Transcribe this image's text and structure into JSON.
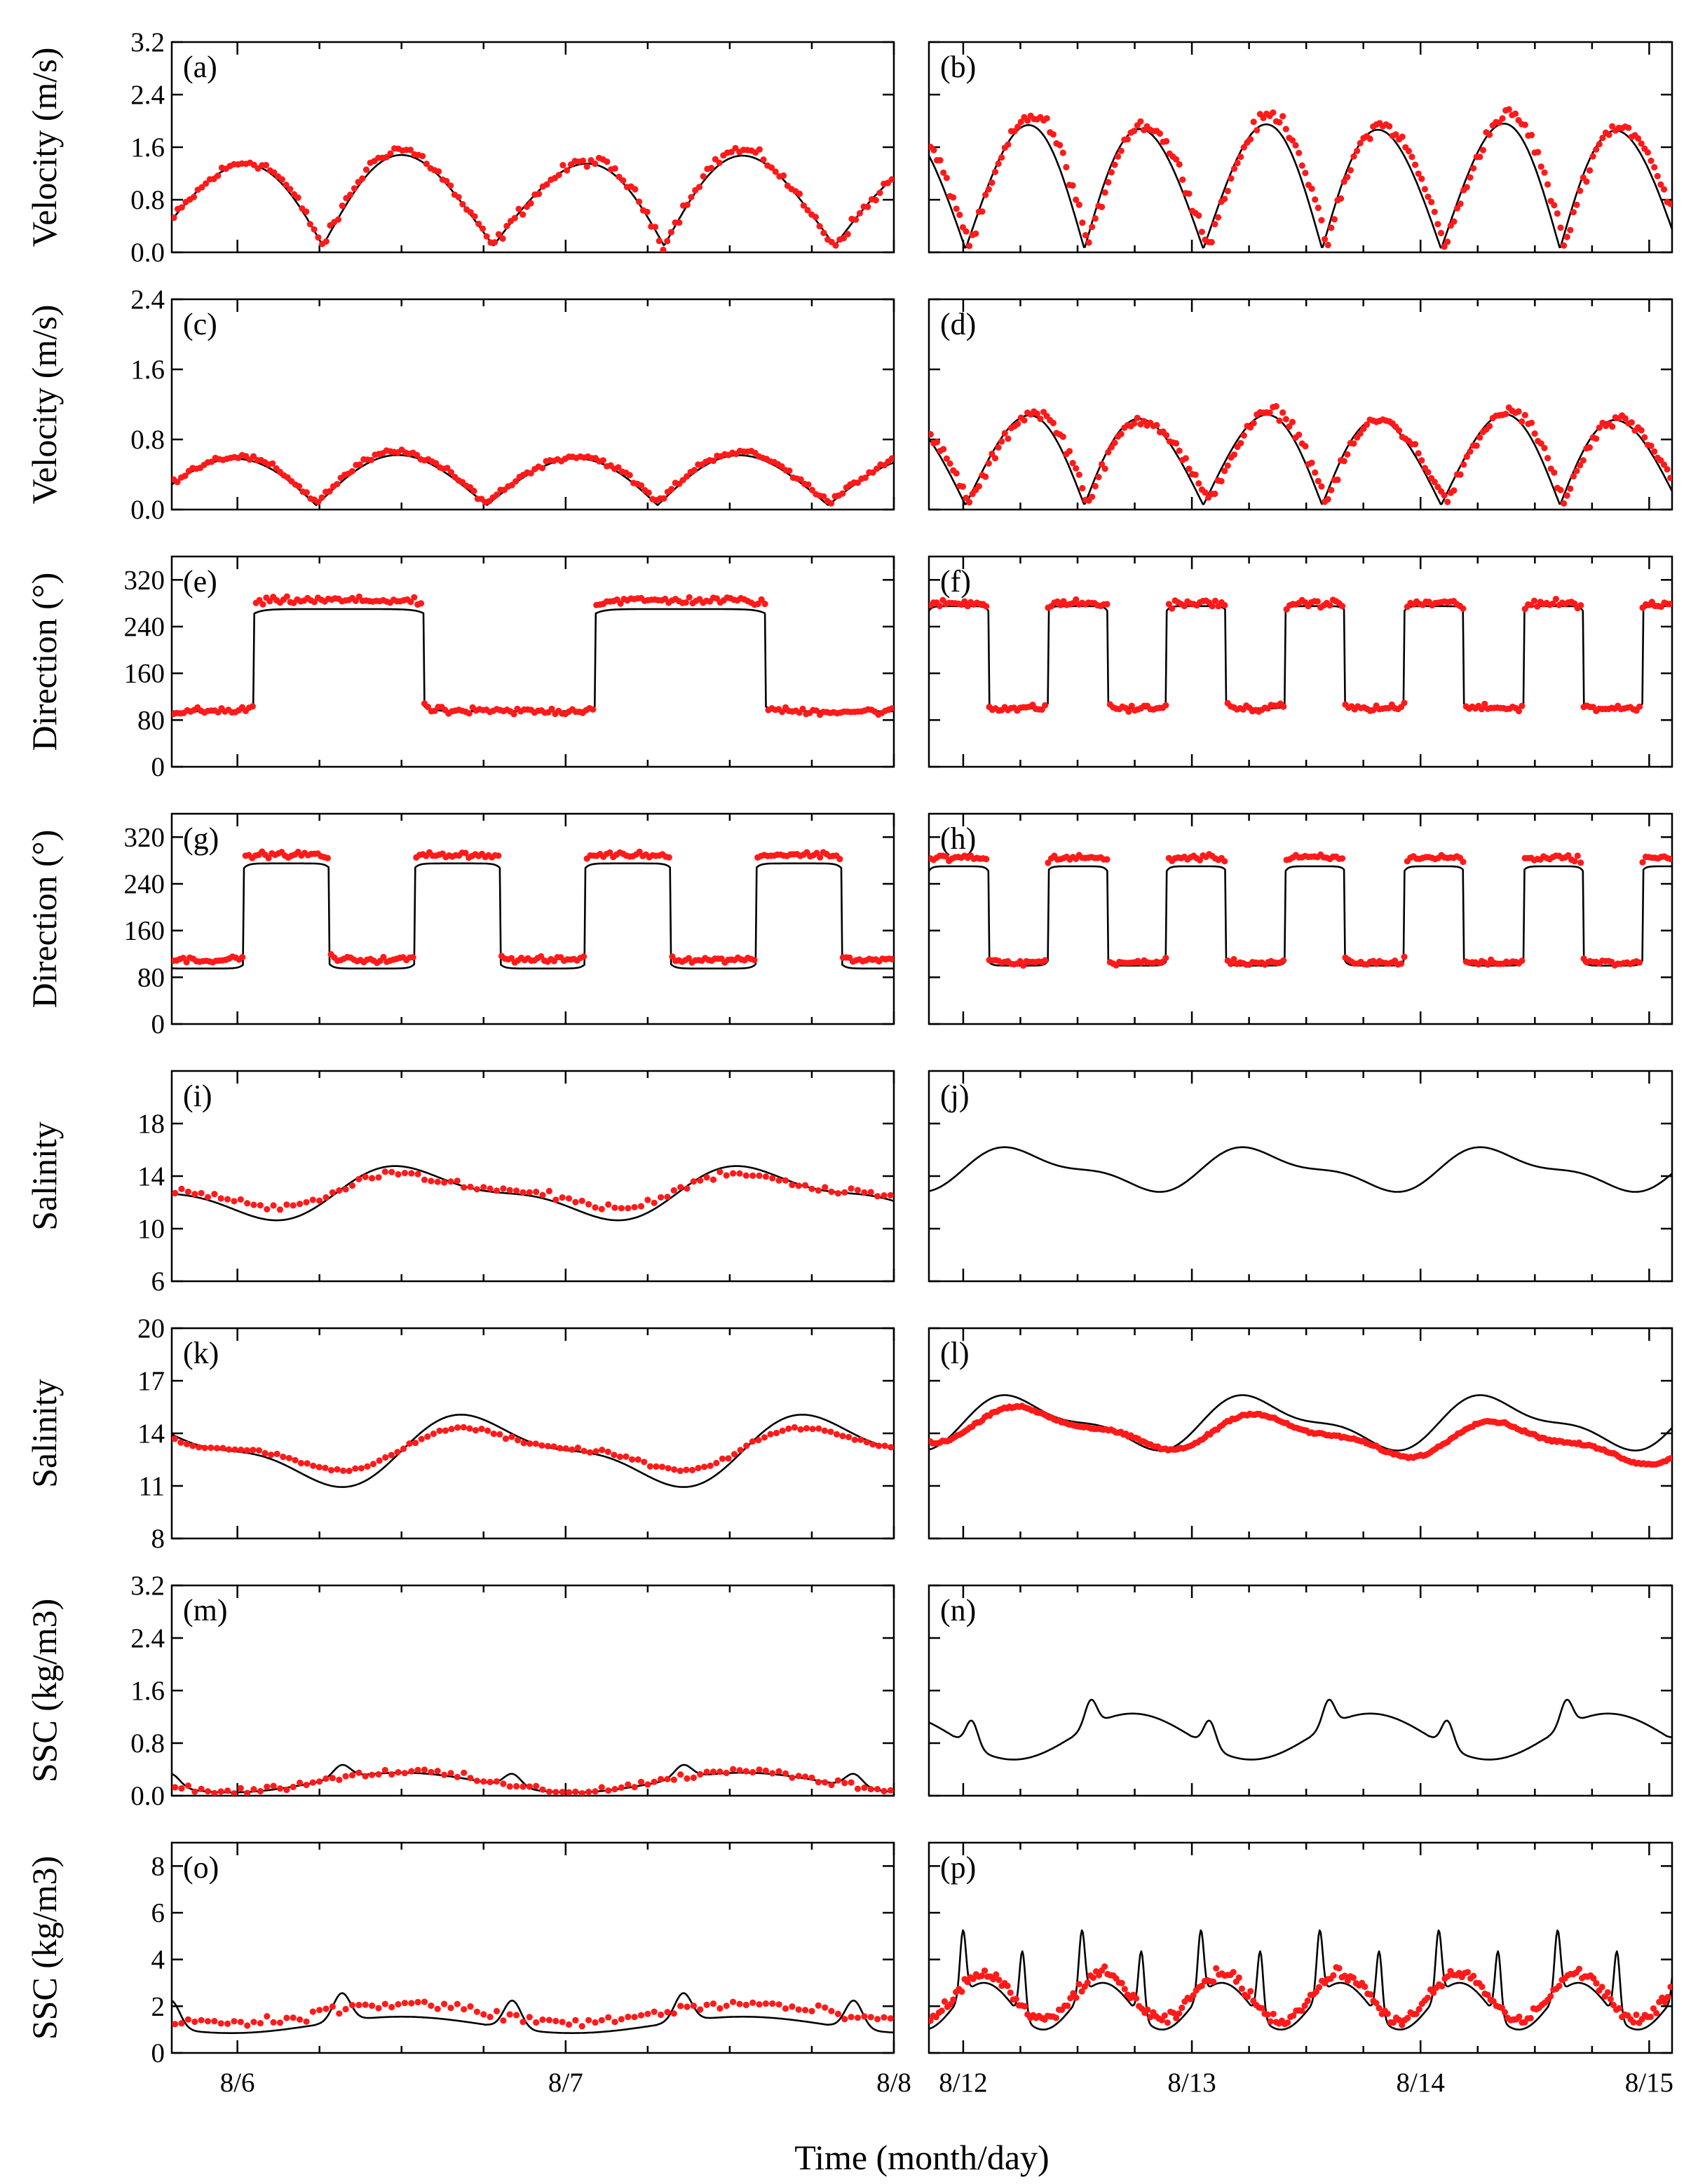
{
  "figure": {
    "xlabel": "Time (month/day)",
    "colors": {
      "model": "#000000",
      "observed": "#ff1a1a"
    },
    "left_x_ticks": [
      "8/6",
      "8/7",
      "8/8"
    ],
    "right_x_ticks": [
      "8/12",
      "8/13",
      "8/14",
      "8/15"
    ],
    "row_ylabels": [
      "Velocity (m/s)",
      "Velocity (m/s)",
      "Direction (°)",
      "Direction (°)",
      "Salinity",
      "Salinity",
      "SSC (kg/m3)",
      "SSC (kg/m3)"
    ]
  },
  "chart_data": [
    {
      "id": "a",
      "tag": "(a)",
      "type": "line",
      "ylim": [
        0,
        3.2
      ],
      "yticks": [
        "0.0",
        "0.8",
        "1.6",
        "2.4",
        "3.2"
      ],
      "xlim": [
        5.8,
        8.0
      ],
      "series": [
        {
          "name": "model",
          "kind": "abs_cos",
          "base": 0.1,
          "amp": 1.3,
          "period": 0.52,
          "phase": 0.02,
          "mod": 0.15
        },
        {
          "name": "observed",
          "kind": "abs_cos_dots",
          "base": 0.1,
          "amp": 1.35,
          "period": 0.52,
          "phase": 0.02,
          "mod": 0.2,
          "n": 180,
          "noise": 0.12
        }
      ]
    },
    {
      "id": "b",
      "tag": "(b)",
      "type": "line",
      "ylim": [
        0,
        3.2
      ],
      "yticks": [],
      "xlim": [
        11.85,
        15.1
      ],
      "series": [
        {
          "name": "model",
          "kind": "abs_cos",
          "base": 0.05,
          "amp": 1.85,
          "period": 0.52,
          "phase": 0.05,
          "mod": 0.1
        },
        {
          "name": "observed",
          "kind": "abs_cos_dots",
          "base": 0.1,
          "amp": 1.9,
          "period": 0.52,
          "phase": 0.07,
          "mod": 0.12,
          "n": 230,
          "noise": 0.15
        }
      ]
    },
    {
      "id": "c",
      "tag": "(c)",
      "type": "line",
      "ylim": [
        0,
        2.4
      ],
      "yticks": [
        "0.0",
        "0.8",
        "1.6",
        "2.4"
      ],
      "xlim": [
        5.8,
        8.0
      ],
      "series": [
        {
          "name": "model",
          "kind": "abs_cos",
          "base": 0.05,
          "amp": 0.55,
          "period": 0.52,
          "phase": 0.0,
          "mod": 0.08
        },
        {
          "name": "observed",
          "kind": "abs_cos_dots",
          "base": 0.08,
          "amp": 0.55,
          "period": 0.52,
          "phase": 0.0,
          "mod": 0.1,
          "n": 190,
          "noise": 0.05
        }
      ]
    },
    {
      "id": "d",
      "tag": "(d)",
      "type": "line",
      "ylim": [
        0,
        2.4
      ],
      "yticks": [],
      "xlim": [
        11.85,
        15.1
      ],
      "series": [
        {
          "name": "model",
          "kind": "abs_cos",
          "base": 0.05,
          "amp": 1.0,
          "period": 0.52,
          "phase": 0.05,
          "mod": 0.12
        },
        {
          "name": "observed",
          "kind": "abs_cos_dots",
          "base": 0.08,
          "amp": 0.98,
          "period": 0.52,
          "phase": 0.07,
          "mod": 0.15,
          "n": 230,
          "noise": 0.1
        }
      ]
    },
    {
      "id": "e",
      "tag": "(e)",
      "type": "line",
      "ylim": [
        0,
        360
      ],
      "yticks": [
        "0",
        "80",
        "160",
        "240",
        "320"
      ],
      "xlim": [
        5.8,
        8.0
      ],
      "series": [
        {
          "name": "model",
          "kind": "square",
          "lo": 95,
          "hi": 270,
          "period": 1.04,
          "phase": 6.05,
          "duty": 0.5
        },
        {
          "name": "observed",
          "kind": "square_dots",
          "lo": 95,
          "hi": 285,
          "period": 1.04,
          "phase": 6.05,
          "duty": 0.5,
          "n": 210,
          "noise": 9
        }
      ]
    },
    {
      "id": "f",
      "tag": "(f)",
      "type": "line",
      "ylim": [
        0,
        360
      ],
      "yticks": [],
      "xlim": [
        11.85,
        15.1
      ],
      "series": [
        {
          "name": "model",
          "kind": "square",
          "lo": 100,
          "hi": 275,
          "period": 0.52,
          "phase": 11.85,
          "duty": 0.5
        },
        {
          "name": "observed",
          "kind": "square_dots",
          "lo": 100,
          "hi": 280,
          "period": 0.52,
          "phase": 11.85,
          "duty": 0.5,
          "n": 240,
          "noise": 9
        }
      ]
    },
    {
      "id": "g",
      "tag": "(g)",
      "type": "line",
      "ylim": [
        0,
        360
      ],
      "yticks": [
        "0",
        "80",
        "160",
        "240",
        "320"
      ],
      "xlim": [
        5.8,
        8.0
      ],
      "series": [
        {
          "name": "model",
          "kind": "square",
          "lo": 95,
          "hi": 275,
          "period": 0.52,
          "phase": 6.02,
          "duty": 0.5
        },
        {
          "name": "observed",
          "kind": "square_dots",
          "lo": 110,
          "hi": 290,
          "period": 0.52,
          "phase": 6.02,
          "duty": 0.5,
          "n": 220,
          "noise": 7
        }
      ]
    },
    {
      "id": "h",
      "tag": "(h)",
      "type": "line",
      "ylim": [
        0,
        360
      ],
      "yticks": [],
      "xlim": [
        11.85,
        15.1
      ],
      "series": [
        {
          "name": "model",
          "kind": "square",
          "lo": 100,
          "hi": 270,
          "period": 0.52,
          "phase": 11.85,
          "duty": 0.5
        },
        {
          "name": "observed",
          "kind": "square_dots",
          "lo": 105,
          "hi": 285,
          "period": 0.52,
          "phase": 11.85,
          "duty": 0.5,
          "n": 240,
          "noise": 7
        }
      ]
    },
    {
      "id": "i",
      "tag": "(i)",
      "type": "line",
      "ylim": [
        6,
        22
      ],
      "yticks": [
        "6",
        "10",
        "14",
        "18"
      ],
      "xlim": [
        5.8,
        8.0
      ],
      "series": [
        {
          "name": "model",
          "kind": "sine",
          "mean": 12.7,
          "amp": 1.7,
          "period": 0.52,
          "phase": 6.3
        },
        {
          "name": "observed",
          "kind": "sine_dots",
          "mean": 12.9,
          "amp": 1.1,
          "period": 0.52,
          "phase": 6.3,
          "n": 110,
          "noise": 0.4
        }
      ]
    },
    {
      "id": "j",
      "tag": "(j)",
      "type": "line",
      "ylim": [
        6,
        22
      ],
      "yticks": [],
      "xlim": [
        11.85,
        15.1
      ],
      "series": [
        {
          "name": "model",
          "kind": "sine",
          "mean": 14.5,
          "amp": 1.4,
          "period": 0.52,
          "phase": 12.0
        }
      ]
    },
    {
      "id": "k",
      "tag": "(k)",
      "type": "line",
      "ylim": [
        8,
        20
      ],
      "yticks": [
        "8",
        "11",
        "14",
        "17",
        "20"
      ],
      "xlim": [
        5.8,
        8.0
      ],
      "series": [
        {
          "name": "model",
          "kind": "sine",
          "mean": 13.0,
          "amp": 1.7,
          "period": 0.52,
          "phase": 6.5
        },
        {
          "name": "observed",
          "kind": "sine_dots",
          "mean": 13.1,
          "amp": 1.0,
          "period": 0.52,
          "phase": 6.5,
          "n": 120,
          "noise": 0.15
        }
      ]
    },
    {
      "id": "l",
      "tag": "(l)",
      "type": "line",
      "ylim": [
        8,
        20
      ],
      "yticks": [],
      "xlim": [
        11.85,
        15.1
      ],
      "series": [
        {
          "name": "model",
          "kind": "sine",
          "mean": 14.6,
          "amp": 1.3,
          "period": 0.52,
          "phase": 12.0
        },
        {
          "name": "observed",
          "kind": "sine_dots",
          "mean": 14.5,
          "amp": 0.9,
          "period": 0.52,
          "phase": 12.05,
          "n": 300,
          "noise": 0.1,
          "trend": -0.4
        }
      ]
    },
    {
      "id": "m",
      "tag": "(m)",
      "type": "line",
      "ylim": [
        0,
        3.2
      ],
      "yticks": [
        "0.0",
        "0.8",
        "1.6",
        "2.4",
        "3.2"
      ],
      "xlim": [
        5.8,
        8.0
      ],
      "series": [
        {
          "name": "model",
          "kind": "ssc",
          "base": 0.2,
          "amp": 0.15,
          "period": 0.52,
          "spike": 0.2
        },
        {
          "name": "observed",
          "kind": "ssc_dots",
          "base": 0.22,
          "amp": 0.15,
          "period": 0.52,
          "n": 110,
          "noise": 0.08
        }
      ]
    },
    {
      "id": "n",
      "tag": "(n)",
      "type": "line",
      "ylim": [
        0,
        3.2
      ],
      "yticks": [],
      "xlim": [
        11.85,
        15.1
      ],
      "series": [
        {
          "name": "model",
          "kind": "ssc",
          "base": 0.9,
          "amp": 0.35,
          "period": 0.52,
          "spike": 0.4
        }
      ]
    },
    {
      "id": "o",
      "tag": "(o)",
      "type": "line",
      "ylim": [
        0,
        9
      ],
      "yticks": [
        "0",
        "2",
        "4",
        "6",
        "8"
      ],
      "xlim": [
        5.8,
        8.0
      ],
      "series": [
        {
          "name": "model",
          "kind": "ssc",
          "base": 1.2,
          "amp": 0.35,
          "period": 0.52,
          "spike": 1.2
        },
        {
          "name": "observed",
          "kind": "ssc_dots",
          "base": 1.7,
          "amp": 0.4,
          "period": 0.52,
          "n": 110,
          "noise": 0.35
        }
      ]
    },
    {
      "id": "p",
      "tag": "(p)",
      "type": "line",
      "ylim": [
        0,
        9
      ],
      "yticks": [],
      "xlim": [
        11.85,
        15.1
      ],
      "series": [
        {
          "name": "model",
          "kind": "ssc",
          "base": 2.0,
          "amp": 1.0,
          "period": 0.26,
          "spike": 2.8
        },
        {
          "name": "observed",
          "kind": "ssc_dots",
          "base": 2.4,
          "amp": 1.0,
          "period": 0.26,
          "n": 260,
          "noise": 0.35
        }
      ]
    }
  ]
}
